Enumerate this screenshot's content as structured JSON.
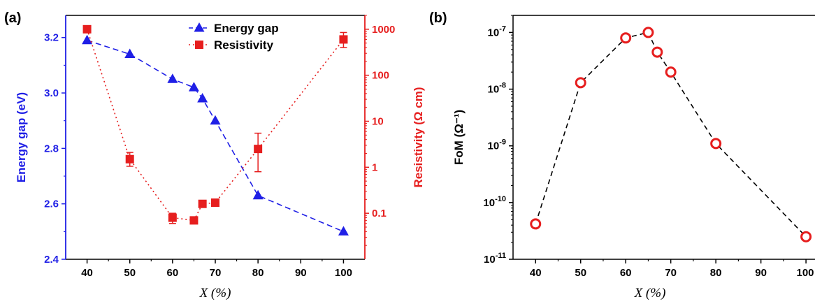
{
  "panels": {
    "a": {
      "label": "(a)"
    },
    "b": {
      "label": "(b)"
    }
  },
  "colors": {
    "blue": "#1f1fe6",
    "red": "#e61e1e",
    "black": "#000000"
  },
  "chart_data": [
    {
      "type": "line",
      "panel": "(a)",
      "xlabel": "X (%)",
      "x_ticks": [
        40,
        50,
        60,
        70,
        80,
        90,
        100
      ],
      "xlim": [
        35,
        105
      ],
      "left_axis": {
        "label": "Energy gap (eV)",
        "ticks": [
          "2.4",
          "2.6",
          "2.8",
          "3.0",
          "3.2"
        ],
        "ylim": [
          2.4,
          3.28
        ]
      },
      "right_axis": {
        "label": "Resistivity (Ω cm)",
        "scale": "log",
        "ticks": [
          "0.1",
          "1",
          "10",
          "100",
          "1000"
        ],
        "ylim": [
          0.01,
          2000
        ]
      },
      "legend": {
        "position": "top-right",
        "entries": [
          "Energy gap",
          "Resistivity"
        ]
      },
      "series": [
        {
          "name": "Energy gap",
          "axis": "left",
          "style": "dashed",
          "marker": "triangle",
          "x": [
            40,
            50,
            60,
            65,
            67,
            70,
            80,
            100
          ],
          "y": [
            3.19,
            3.14,
            3.05,
            3.02,
            2.98,
            2.9,
            2.63,
            2.5
          ]
        },
        {
          "name": "Resistivity",
          "axis": "right",
          "style": "dotted",
          "marker": "square",
          "x": [
            40,
            50,
            60,
            65,
            67,
            70,
            80,
            100
          ],
          "y": [
            1000,
            1.5,
            0.08,
            0.07,
            0.16,
            0.17,
            2.5,
            600
          ],
          "error_bars": [
            {
              "x": 50,
              "low": 1.05,
              "high": 2.1
            },
            {
              "x": 60,
              "low": 0.06,
              "high": 0.1
            },
            {
              "x": 80,
              "low": 0.8,
              "high": 5.5
            },
            {
              "x": 100,
              "low": 400,
              "high": 850
            }
          ]
        }
      ]
    },
    {
      "type": "line",
      "panel": "(b)",
      "xlabel": "X (%)",
      "x_ticks": [
        40,
        50,
        60,
        70,
        80,
        90,
        100
      ],
      "xlim": [
        35,
        102
      ],
      "y_axis": {
        "label": "FoM (Ω⁻¹)",
        "scale": "log",
        "ylim": [
          1e-11,
          2e-07
        ]
      },
      "y_ticks": [
        {
          "exp": -11,
          "label": "10-11"
        },
        {
          "exp": -10,
          "label": "10-10"
        },
        {
          "exp": -9,
          "label": "10-9"
        },
        {
          "exp": -8,
          "label": "10-8"
        },
        {
          "exp": -7,
          "label": "10-7"
        }
      ],
      "series": [
        {
          "style": "dashed",
          "marker": "open-circle",
          "x": [
            40,
            50,
            60,
            65,
            67,
            70,
            80,
            100
          ],
          "y": [
            4.2e-11,
            1.3e-08,
            8e-08,
            1e-07,
            4.5e-08,
            2e-08,
            1.1e-09,
            2.5e-11
          ]
        }
      ]
    }
  ]
}
